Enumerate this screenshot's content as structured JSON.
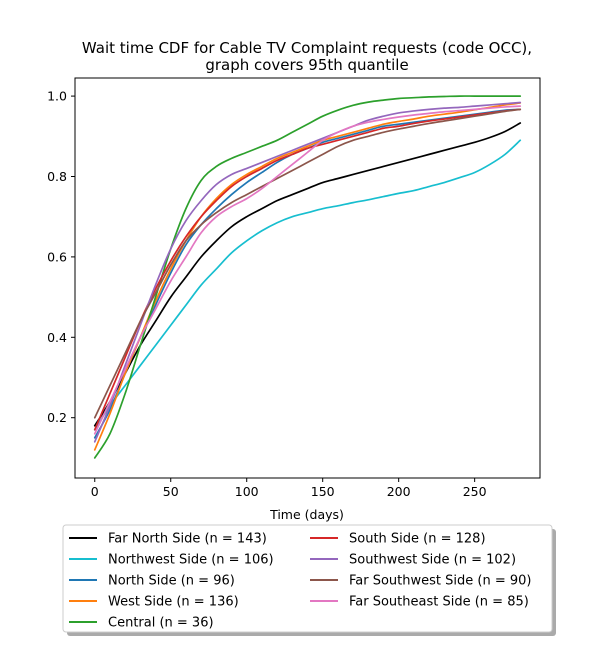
{
  "chart_data": {
    "type": "line",
    "title": "Wait time CDF for Cable TV Complaint  requests (code OCC),",
    "subtitle": "graph covers 95th quantile",
    "xlabel": "Time (days)",
    "ylabel": "",
    "xlim": [
      -13,
      293
    ],
    "ylim": [
      0.05,
      1.045
    ],
    "xticks": [
      0,
      50,
      100,
      150,
      200,
      250
    ],
    "yticks": [
      0.2,
      0.4,
      0.6,
      0.8,
      1.0
    ],
    "x": [
      0,
      10,
      20,
      30,
      40,
      50,
      60,
      70,
      80,
      90,
      100,
      110,
      120,
      130,
      140,
      150,
      160,
      170,
      180,
      190,
      200,
      210,
      220,
      230,
      240,
      250,
      260,
      270,
      280
    ],
    "legend_position": "below",
    "series": [
      {
        "name": "Far North Side (n = 143)",
        "color": "#000000",
        "values": [
          0.18,
          0.24,
          0.31,
          0.38,
          0.44,
          0.5,
          0.55,
          0.6,
          0.64,
          0.675,
          0.7,
          0.72,
          0.74,
          0.755,
          0.77,
          0.785,
          0.795,
          0.805,
          0.815,
          0.825,
          0.835,
          0.845,
          0.855,
          0.865,
          0.875,
          0.885,
          0.897,
          0.912,
          0.933
        ]
      },
      {
        "name": "Northwest Side (n = 106)",
        "color": "#17becf",
        "values": [
          0.17,
          0.23,
          0.28,
          0.33,
          0.38,
          0.43,
          0.48,
          0.53,
          0.57,
          0.61,
          0.64,
          0.665,
          0.685,
          0.7,
          0.71,
          0.72,
          0.727,
          0.735,
          0.742,
          0.75,
          0.758,
          0.765,
          0.775,
          0.785,
          0.797,
          0.81,
          0.83,
          0.855,
          0.89
        ]
      },
      {
        "name": "North Side (n = 96)",
        "color": "#1f77b4",
        "values": [
          0.15,
          0.22,
          0.31,
          0.4,
          0.48,
          0.56,
          0.63,
          0.68,
          0.72,
          0.755,
          0.785,
          0.81,
          0.835,
          0.855,
          0.87,
          0.885,
          0.895,
          0.905,
          0.915,
          0.925,
          0.93,
          0.935,
          0.94,
          0.945,
          0.95,
          0.955,
          0.96,
          0.965,
          0.967
        ]
      },
      {
        "name": "West Side (n = 136)",
        "color": "#ff7f0e",
        "values": [
          0.12,
          0.21,
          0.31,
          0.4,
          0.49,
          0.57,
          0.64,
          0.7,
          0.745,
          0.78,
          0.805,
          0.825,
          0.845,
          0.86,
          0.875,
          0.89,
          0.9,
          0.91,
          0.92,
          0.93,
          0.937,
          0.943,
          0.95,
          0.955,
          0.96,
          0.966,
          0.972,
          0.978,
          0.983
        ]
      },
      {
        "name": "Central (n = 36)",
        "color": "#2ca02c",
        "values": [
          0.1,
          0.16,
          0.26,
          0.38,
          0.5,
          0.62,
          0.72,
          0.79,
          0.825,
          0.845,
          0.86,
          0.875,
          0.89,
          0.91,
          0.93,
          0.95,
          0.965,
          0.977,
          0.985,
          0.99,
          0.994,
          0.996,
          0.998,
          0.999,
          1.0,
          1.0,
          1.0,
          1.0,
          1.0
        ]
      },
      {
        "name": "South Side (n = 128)",
        "color": "#d62728",
        "values": [
          0.17,
          0.26,
          0.35,
          0.44,
          0.52,
          0.59,
          0.65,
          0.7,
          0.74,
          0.775,
          0.8,
          0.82,
          0.84,
          0.855,
          0.87,
          0.88,
          0.89,
          0.9,
          0.91,
          0.92,
          0.925,
          0.932,
          0.938,
          0.943,
          0.948,
          0.953,
          0.958,
          0.963,
          0.967
        ]
      },
      {
        "name": "Southwest Side (n = 102)",
        "color": "#9467bd",
        "values": [
          0.14,
          0.23,
          0.33,
          0.43,
          0.53,
          0.62,
          0.69,
          0.74,
          0.78,
          0.805,
          0.82,
          0.835,
          0.85,
          0.865,
          0.88,
          0.895,
          0.91,
          0.925,
          0.94,
          0.95,
          0.958,
          0.963,
          0.967,
          0.97,
          0.972,
          0.975,
          0.978,
          0.981,
          0.984
        ]
      },
      {
        "name": "Far Southwest Side (n = 90)",
        "color": "#8c564b",
        "values": [
          0.2,
          0.28,
          0.36,
          0.44,
          0.51,
          0.58,
          0.64,
          0.68,
          0.71,
          0.735,
          0.755,
          0.775,
          0.795,
          0.815,
          0.835,
          0.855,
          0.875,
          0.89,
          0.9,
          0.91,
          0.918,
          0.925,
          0.932,
          0.938,
          0.944,
          0.95,
          0.956,
          0.962,
          0.967
        ]
      },
      {
        "name": "Far Southeast Side (n = 85)",
        "color": "#e377c2",
        "values": [
          0.16,
          0.24,
          0.32,
          0.4,
          0.47,
          0.54,
          0.6,
          0.66,
          0.7,
          0.725,
          0.745,
          0.77,
          0.8,
          0.83,
          0.86,
          0.89,
          0.91,
          0.925,
          0.935,
          0.942,
          0.948,
          0.953,
          0.957,
          0.961,
          0.964,
          0.967,
          0.97,
          0.973,
          0.975
        ]
      }
    ]
  }
}
